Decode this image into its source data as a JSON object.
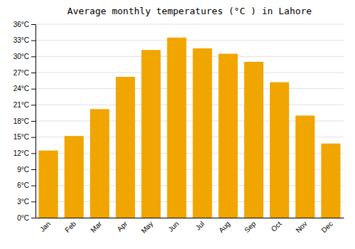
{
  "chart_data": {
    "type": "bar",
    "title": "Average monthly temperatures (°C ) in Lahore",
    "categories": [
      "Jan",
      "Feb",
      "Mar",
      "Apr",
      "May",
      "Jun",
      "Jul",
      "Aug",
      "Sep",
      "Oct",
      "Nov",
      "Dec"
    ],
    "values": [
      12.5,
      15.2,
      20.2,
      26.2,
      31.2,
      33.5,
      31.5,
      30.5,
      29.0,
      25.2,
      19.0,
      13.8
    ],
    "color": "#F0A500",
    "ylim": [
      0,
      36
    ],
    "yticks": [
      {
        "value": 0,
        "label": "0°C"
      },
      {
        "value": 3,
        "label": "3°C"
      },
      {
        "value": 6,
        "label": "6°C"
      },
      {
        "value": 9,
        "label": "9°C"
      },
      {
        "value": 12,
        "label": "12°C"
      },
      {
        "value": 15,
        "label": "15°C"
      },
      {
        "value": 18,
        "label": "18°C"
      },
      {
        "value": 21,
        "label": "21°C"
      },
      {
        "value": 24,
        "label": "24°C"
      },
      {
        "value": 27,
        "label": "27°C"
      },
      {
        "value": 30,
        "label": "30°C"
      },
      {
        "value": 33,
        "label": "33°C"
      },
      {
        "value": 36,
        "label": "36°C"
      }
    ],
    "grid": true
  }
}
